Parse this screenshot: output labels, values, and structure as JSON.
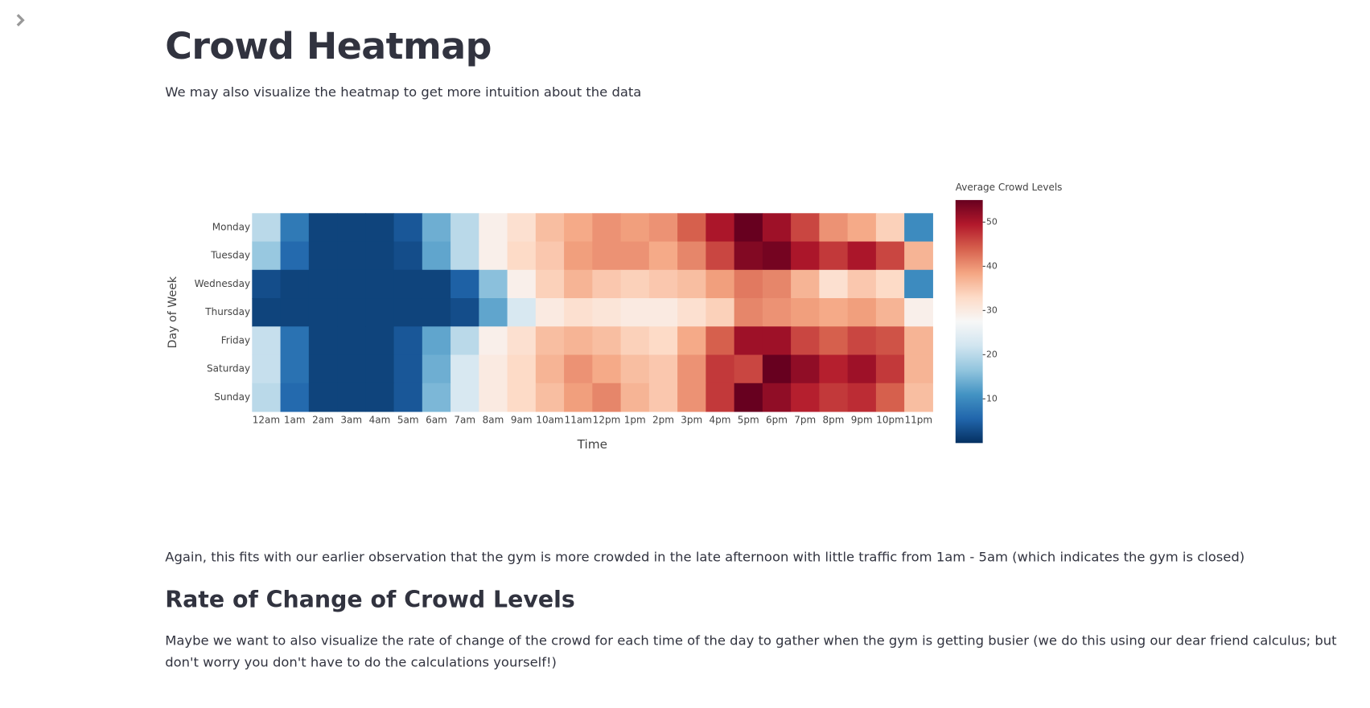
{
  "header": {
    "title": "Crowd Heatmap",
    "text": "We may also visualize the heatmap to get more intuition about the data"
  },
  "chart_data": {
    "type": "heatmap",
    "x_label": "Time",
    "y_label": "Day of Week",
    "colorbar_title": "Average Crowd Levels",
    "x": [
      "12am",
      "1am",
      "2am",
      "3am",
      "4am",
      "5am",
      "6am",
      "7am",
      "8am",
      "9am",
      "10am",
      "11am",
      "12pm",
      "1pm",
      "2pm",
      "3pm",
      "4pm",
      "5pm",
      "6pm",
      "7pm",
      "8pm",
      "9pm",
      "10pm",
      "11pm"
    ],
    "y": [
      "Monday",
      "Tuesday",
      "Wednesday",
      "Thursday",
      "Friday",
      "Saturday",
      "Sunday"
    ],
    "z": [
      [
        20,
        8,
        2,
        2,
        2,
        4,
        14,
        20,
        29,
        32,
        36,
        38,
        40,
        39,
        40,
        44,
        50,
        55,
        51,
        46,
        40,
        38,
        34,
        10
      ],
      [
        17,
        6,
        2,
        2,
        2,
        3,
        13,
        20,
        29,
        33,
        35,
        39,
        40,
        40,
        38,
        41,
        46,
        53,
        54,
        50,
        47,
        50,
        46,
        37
      ],
      [
        3,
        2,
        2,
        2,
        2,
        2,
        2,
        5,
        16,
        29,
        34,
        37,
        35,
        34,
        35,
        36,
        39,
        42,
        41,
        37,
        32,
        35,
        33,
        10
      ],
      [
        2,
        2,
        2,
        2,
        2,
        2,
        2,
        3,
        13,
        23,
        30,
        32,
        31,
        30,
        30,
        32,
        34,
        41,
        40,
        39,
        38,
        39,
        37,
        29
      ],
      [
        21,
        7,
        2,
        2,
        2,
        4,
        13,
        20,
        29,
        32,
        36,
        37,
        36,
        34,
        33,
        38,
        44,
        51,
        51,
        46,
        44,
        46,
        45,
        37
      ],
      [
        21,
        7,
        2,
        2,
        2,
        4,
        14,
        23,
        30,
        33,
        37,
        40,
        38,
        36,
        35,
        40,
        47,
        46,
        55,
        52,
        49,
        51,
        47,
        37
      ],
      [
        20,
        6,
        2,
        2,
        2,
        4,
        15,
        23,
        30,
        33,
        36,
        39,
        41,
        37,
        35,
        40,
        47,
        55,
        52,
        49,
        47,
        48,
        44,
        36
      ]
    ],
    "zlim": [
      0,
      55
    ],
    "zticks": [
      10,
      20,
      30,
      40,
      50
    ],
    "colorscale": [
      "#053061",
      "#2166ac",
      "#4393c3",
      "#92c5de",
      "#d1e5f0",
      "#f7f7f7",
      "#fddbc7",
      "#f4a582",
      "#d6604d",
      "#b2182b",
      "#67001f"
    ]
  },
  "body": {
    "paragraph1": "Again, this fits with our earlier observation that the gym is more crowded in the late afternoon with little traffic from 1am - 5am (which indicates the gym is closed)",
    "heading": "Rate of Change of Crowd Levels",
    "paragraph2": "Maybe we want to also visualize the rate of change of the crowd for each time of the day to gather when the gym is getting busier (we do this using our dear friend calculus; but don't worry you don't have to do the calculations yourself!)"
  }
}
